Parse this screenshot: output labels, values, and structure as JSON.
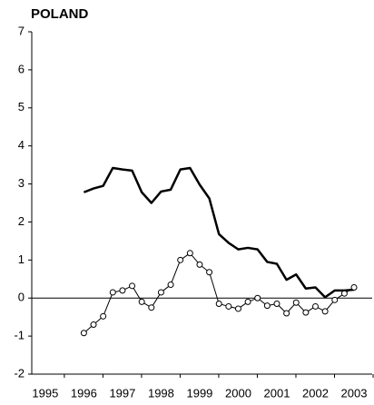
{
  "chart_data": {
    "type": "line",
    "title": "POLAND",
    "x": [
      1996,
      1996.25,
      1996.5,
      1996.75,
      1997,
      1997.25,
      1997.5,
      1997.75,
      1998,
      1998.25,
      1998.5,
      1998.75,
      1999,
      1999.25,
      1999.5,
      1999.75,
      2000,
      2000.25,
      2000.5,
      2000.75,
      2001,
      2001.25,
      2001.5,
      2001.75,
      2002,
      2002.25,
      2002.5,
      2002.75,
      2003
    ],
    "series": [
      {
        "color": "#000000",
        "width": 2.5,
        "markers": false,
        "values": [
          2.78,
          2.88,
          2.95,
          3.42,
          3.38,
          3.35,
          2.78,
          2.5,
          2.8,
          2.85,
          3.38,
          3.42,
          2.98,
          2.62,
          1.68,
          1.45,
          1.28,
          1.32,
          1.28,
          0.95,
          0.9,
          0.48,
          0.62,
          0.25,
          0.28,
          0.02,
          0.2,
          0.2,
          0.22
        ]
      },
      {
        "color": "#000000",
        "width": 1,
        "markers": true,
        "values": [
          -0.92,
          -0.7,
          -0.48,
          0.15,
          0.2,
          0.32,
          -0.1,
          -0.25,
          0.15,
          0.35,
          1.0,
          1.18,
          0.88,
          0.68,
          -0.15,
          -0.22,
          -0.28,
          -0.1,
          0.0,
          -0.2,
          -0.15,
          -0.4,
          -0.12,
          -0.38,
          -0.22,
          -0.35,
          -0.05,
          0.12,
          0.28
        ]
      }
    ],
    "xlim": [
      1994.65,
      2003.47
    ],
    "xticks": [
      1995,
      1996,
      1997,
      1998,
      1999,
      2000,
      2001,
      2002,
      2003
    ],
    "ylim": [
      -2,
      7
    ],
    "yticks": [
      -2,
      -1,
      0,
      1,
      2,
      3,
      4,
      5,
      6,
      7
    ],
    "zero_line": true
  }
}
